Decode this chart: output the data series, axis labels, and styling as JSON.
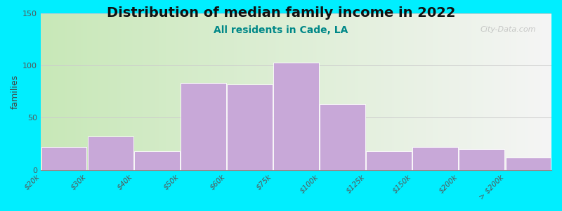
{
  "title": "Distribution of median family income in 2022",
  "subtitle": "All residents in Cade, LA",
  "ylabel": "families",
  "edge_labels": [
    "$20k",
    "$30k",
    "$40k",
    "$50k",
    "$60k",
    "$75k",
    "$100k",
    "$125k",
    "$150k",
    "$200k",
    "> $200k"
  ],
  "values": [
    22,
    32,
    18,
    83,
    82,
    103,
    63,
    18,
    22,
    20,
    12
  ],
  "bar_color": "#c8a8d8",
  "bar_edge_color": "#ffffff",
  "ylim": [
    0,
    150
  ],
  "yticks": [
    0,
    50,
    100,
    150
  ],
  "background_outer": "#00eeff",
  "plot_bg_left": "#c8e8b8",
  "plot_bg_right": "#f5f5f5",
  "title_fontsize": 14,
  "subtitle_fontsize": 10,
  "watermark": "City-Data.com",
  "title_color": "#111111",
  "subtitle_color": "#008888"
}
